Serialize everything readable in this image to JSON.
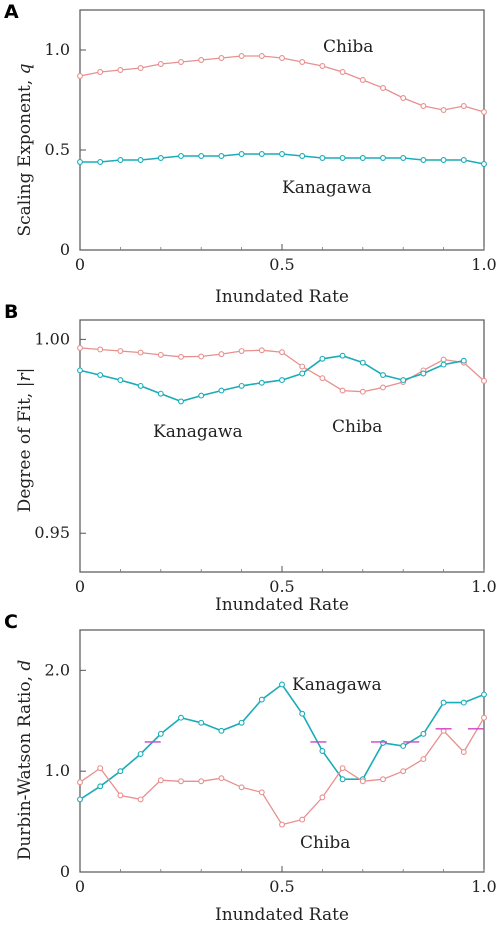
{
  "chart_data": [
    {
      "panel": "A",
      "type": "line",
      "xlabel": "Inundated Rate",
      "ylabel": "Scaling Exponent,",
      "ylabel_symbol": "q",
      "xlim": [
        0,
        1.0
      ],
      "ylim": [
        0,
        1.2
      ],
      "xticks": [
        "0",
        "0.5",
        "1.0"
      ],
      "yticks": [
        "0",
        "0.5",
        "1.0"
      ],
      "series": [
        {
          "name": "Chiba",
          "color": "#e8908f",
          "x": [
            0,
            0.05,
            0.1,
            0.15,
            0.2,
            0.25,
            0.3,
            0.35,
            0.4,
            0.45,
            0.5,
            0.55,
            0.6,
            0.65,
            0.7,
            0.75,
            0.8,
            0.85,
            0.9,
            0.95,
            1.0
          ],
          "y": [
            0.87,
            0.89,
            0.9,
            0.91,
            0.93,
            0.94,
            0.95,
            0.96,
            0.97,
            0.97,
            0.96,
            0.94,
            0.92,
            0.89,
            0.85,
            0.81,
            0.76,
            0.72,
            0.7,
            0.72,
            0.69
          ]
        },
        {
          "name": "Kanagawa",
          "color": "#1aacb8",
          "x": [
            0,
            0.05,
            0.1,
            0.15,
            0.2,
            0.25,
            0.3,
            0.35,
            0.4,
            0.45,
            0.5,
            0.55,
            0.6,
            0.65,
            0.7,
            0.75,
            0.8,
            0.85,
            0.9,
            0.95,
            1.0
          ],
          "y": [
            0.44,
            0.44,
            0.45,
            0.45,
            0.46,
            0.47,
            0.47,
            0.47,
            0.48,
            0.48,
            0.48,
            0.47,
            0.46,
            0.46,
            0.46,
            0.46,
            0.46,
            0.45,
            0.45,
            0.45,
            0.43
          ]
        }
      ]
    },
    {
      "panel": "B",
      "type": "line",
      "xlabel": "Inundated Rate",
      "ylabel": "Degree of Fit,",
      "ylabel_symbol": "|r|",
      "xlim": [
        0,
        1.0
      ],
      "ylim": [
        0.94,
        1.005
      ],
      "xticks": [
        "0",
        "0.5",
        "1.0"
      ],
      "yticks": [
        "0.95",
        "1.00"
      ],
      "series": [
        {
          "name": "Chiba",
          "color": "#e8908f",
          "x": [
            0,
            0.05,
            0.1,
            0.15,
            0.2,
            0.25,
            0.3,
            0.35,
            0.4,
            0.45,
            0.5,
            0.55,
            0.6,
            0.65,
            0.7,
            0.75,
            0.8,
            0.85,
            0.9,
            0.95,
            1.0
          ],
          "y": [
            0.9978,
            0.9974,
            0.997,
            0.9966,
            0.996,
            0.9955,
            0.9956,
            0.9962,
            0.997,
            0.9972,
            0.9967,
            0.993,
            0.99,
            0.9868,
            0.9865,
            0.9876,
            0.989,
            0.992,
            0.9948,
            0.994,
            0.9893
          ]
        },
        {
          "name": "Kanagawa",
          "color": "#1aacb8",
          "x": [
            0,
            0.05,
            0.1,
            0.15,
            0.2,
            0.25,
            0.3,
            0.35,
            0.4,
            0.45,
            0.5,
            0.55,
            0.6,
            0.65,
            0.7,
            0.75,
            0.8,
            0.85,
            0.9,
            0.95
          ],
          "y": [
            0.992,
            0.9908,
            0.9895,
            0.988,
            0.986,
            0.984,
            0.9855,
            0.9868,
            0.988,
            0.9888,
            0.9895,
            0.9912,
            0.995,
            0.9958,
            0.994,
            0.9908,
            0.9895,
            0.9912,
            0.9935,
            0.9945
          ]
        }
      ]
    },
    {
      "panel": "C",
      "type": "line",
      "xlabel": "Inundated Rate",
      "ylabel": "Durbin-Watson Ratio,",
      "ylabel_symbol": "d",
      "xlim": [
        0,
        1.0
      ],
      "ylim": [
        0,
        2.4
      ],
      "xticks": [
        "0",
        "0.5",
        "1.0"
      ],
      "yticks": [
        "0",
        "1.0",
        "2.0"
      ],
      "series": [
        {
          "name": "Kanagawa",
          "color": "#1aacb8",
          "x": [
            0,
            0.05,
            0.1,
            0.15,
            0.2,
            0.25,
            0.3,
            0.35,
            0.4,
            0.45,
            0.5,
            0.55,
            0.6,
            0.65,
            0.7,
            0.75,
            0.8,
            0.85,
            0.9,
            0.95,
            1.0
          ],
          "y": [
            0.72,
            0.85,
            1.0,
            1.17,
            1.37,
            1.53,
            1.48,
            1.4,
            1.48,
            1.71,
            1.86,
            1.57,
            1.2,
            0.92,
            0.92,
            1.28,
            1.25,
            1.37,
            1.68,
            1.68,
            1.76
          ]
        },
        {
          "name": "Chiba",
          "color": "#e8908f",
          "x": [
            0,
            0.05,
            0.1,
            0.15,
            0.2,
            0.25,
            0.3,
            0.35,
            0.4,
            0.45,
            0.5,
            0.55,
            0.6,
            0.65,
            0.7,
            0.75,
            0.8,
            0.85,
            0.9,
            0.95,
            1.0
          ],
          "y": [
            0.89,
            1.03,
            0.76,
            0.72,
            0.91,
            0.9,
            0.9,
            0.93,
            0.84,
            0.79,
            0.47,
            0.52,
            0.74,
            1.03,
            0.9,
            0.92,
            1.0,
            1.12,
            1.4,
            1.19,
            1.53
          ]
        }
      ],
      "reference_marks": {
        "color": "#d040c8",
        "x": [
          0.18,
          0.59,
          0.74,
          0.82,
          0.9,
          0.98
        ],
        "y": [
          1.29,
          1.29,
          1.29,
          1.29,
          1.42,
          1.42
        ]
      }
    }
  ]
}
